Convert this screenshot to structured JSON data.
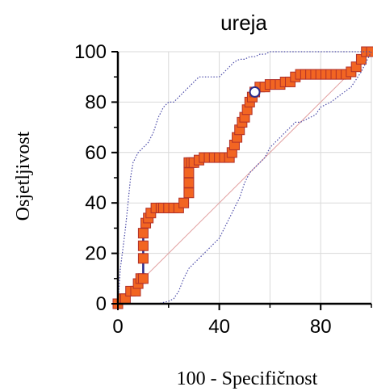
{
  "chart_data": {
    "type": "line",
    "title": "ureja",
    "xlabel": "100 - Specifičnost",
    "ylabel": "Osjetljivost",
    "xlim": [
      0,
      100
    ],
    "ylim": [
      0,
      100
    ],
    "xticks": [
      0,
      40,
      80
    ],
    "yticks": [
      0,
      20,
      40,
      60,
      80,
      100
    ],
    "grid": true,
    "colors": {
      "roc_line": "#2b2b8a",
      "marker_fill": "#f26522",
      "marker_edge": "#b0302a",
      "ci_band": "#4a4aa8",
      "diagonal": "#e2a0a0",
      "grid": "#d9d9d9",
      "highlight_fill": "#ffffff"
    },
    "series": [
      {
        "role": "roc",
        "x": [
          0,
          2,
          3,
          5,
          7,
          8,
          9,
          10,
          10,
          10,
          10,
          11,
          12,
          13,
          15,
          17,
          18,
          20,
          22,
          24,
          26,
          28,
          28,
          28,
          28,
          29,
          30,
          32,
          34,
          36,
          38,
          40,
          42,
          44,
          45,
          46,
          47,
          48,
          49,
          50,
          51,
          52,
          53,
          54,
          56,
          58,
          60,
          62,
          64,
          66,
          68,
          70,
          72,
          74,
          76,
          78,
          80,
          82,
          84,
          86,
          88,
          90,
          92,
          94,
          96,
          98,
          100
        ],
        "y": [
          0,
          2,
          2,
          5,
          5,
          8,
          10,
          10,
          18,
          23,
          28,
          32,
          34,
          36,
          38,
          38,
          38,
          38,
          38,
          38,
          40,
          44,
          48,
          52,
          56,
          56,
          56,
          57,
          58,
          58,
          58,
          58,
          58,
          58,
          60,
          63,
          66,
          69,
          72,
          74,
          77,
          80,
          82,
          84,
          86,
          86,
          87,
          87,
          87,
          88,
          88,
          90,
          91,
          91,
          91,
          91,
          91,
          91,
          91,
          91,
          91,
          91,
          92,
          94,
          97,
          100,
          100
        ]
      },
      {
        "role": "ci_upper",
        "x": [
          0,
          1,
          2,
          3,
          4,
          5,
          6,
          7,
          8,
          10,
          12,
          14,
          16,
          18,
          20,
          22,
          24,
          26,
          28,
          30,
          32,
          34,
          36,
          38,
          40,
          42,
          44,
          46,
          48,
          50,
          52,
          54,
          56,
          58,
          60,
          64,
          68,
          72,
          76,
          80,
          84,
          88,
          92,
          96,
          100
        ],
        "y": [
          0,
          14,
          22,
          30,
          40,
          50,
          56,
          58,
          60,
          62,
          64,
          68,
          74,
          78,
          80,
          80,
          82,
          84,
          86,
          88,
          90,
          90,
          90,
          90,
          90,
          92,
          94,
          96,
          97,
          97,
          98,
          98,
          99,
          99,
          100,
          100,
          100,
          100,
          100,
          100,
          100,
          100,
          100,
          100,
          100
        ]
      },
      {
        "role": "ci_lower",
        "x": [
          0,
          4,
          8,
          12,
          16,
          20,
          22,
          24,
          26,
          28,
          30,
          32,
          34,
          36,
          38,
          40,
          42,
          44,
          46,
          48,
          50,
          52,
          54,
          56,
          58,
          60,
          62,
          64,
          66,
          68,
          70,
          72,
          74,
          76,
          78,
          80,
          84,
          88,
          92,
          96,
          100
        ],
        "y": [
          0,
          0,
          0,
          0,
          0,
          1,
          2,
          5,
          10,
          14,
          16,
          18,
          20,
          22,
          24,
          26,
          30,
          34,
          38,
          42,
          48,
          52,
          54,
          56,
          58,
          62,
          64,
          66,
          68,
          70,
          72,
          72,
          73,
          74,
          75,
          78,
          80,
          83,
          86,
          92,
          100
        ]
      }
    ],
    "highlight_point": {
      "x": 54,
      "y": 84
    }
  }
}
